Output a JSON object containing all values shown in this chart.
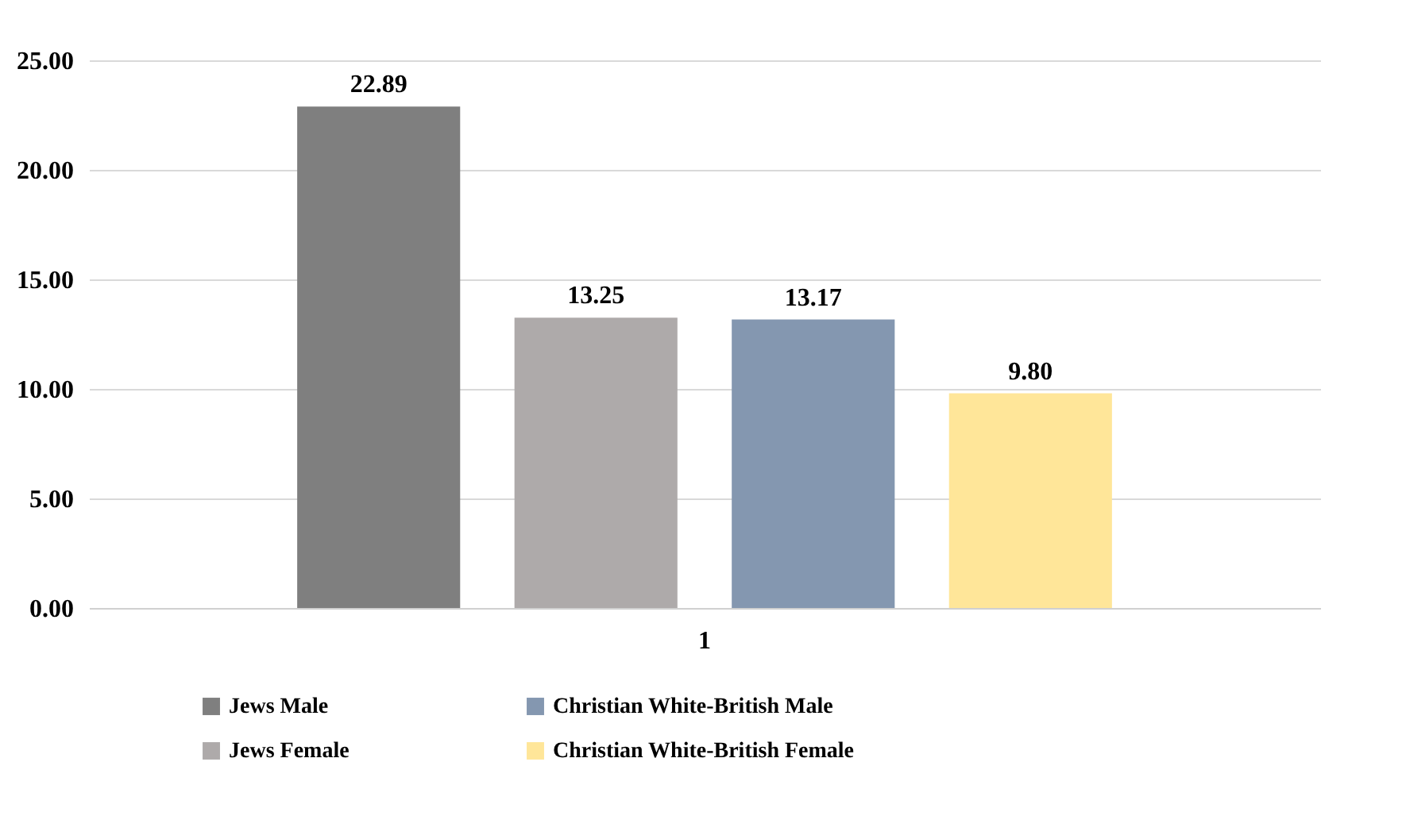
{
  "chart_data": {
    "type": "bar",
    "categories": [
      "1"
    ],
    "series": [
      {
        "name": "Jews Male",
        "color": "#7f7f7f",
        "values": [
          22.89
        ],
        "value_labels": [
          "22.89"
        ]
      },
      {
        "name": "Jews Female",
        "color": "#aeaaaa",
        "values": [
          13.25
        ],
        "value_labels": [
          "13.25"
        ]
      },
      {
        "name": "Christian White-British Male",
        "color": "#8497b0",
        "values": [
          13.17
        ],
        "value_labels": [
          "13.17"
        ]
      },
      {
        "name": "Christian White-British Female",
        "color": "#ffe699",
        "values": [
          9.8
        ],
        "value_labels": [
          "9.80"
        ]
      }
    ],
    "ylim": [
      0,
      25
    ],
    "yticks": [
      {
        "value": 0,
        "label": "0.00"
      },
      {
        "value": 5,
        "label": "5.00"
      },
      {
        "value": 10,
        "label": "10.00"
      },
      {
        "value": 15,
        "label": "15.00"
      },
      {
        "value": 20,
        "label": "20.00"
      },
      {
        "value": 25,
        "label": "25.00"
      }
    ],
    "grid": "y",
    "legend": "bottom"
  }
}
